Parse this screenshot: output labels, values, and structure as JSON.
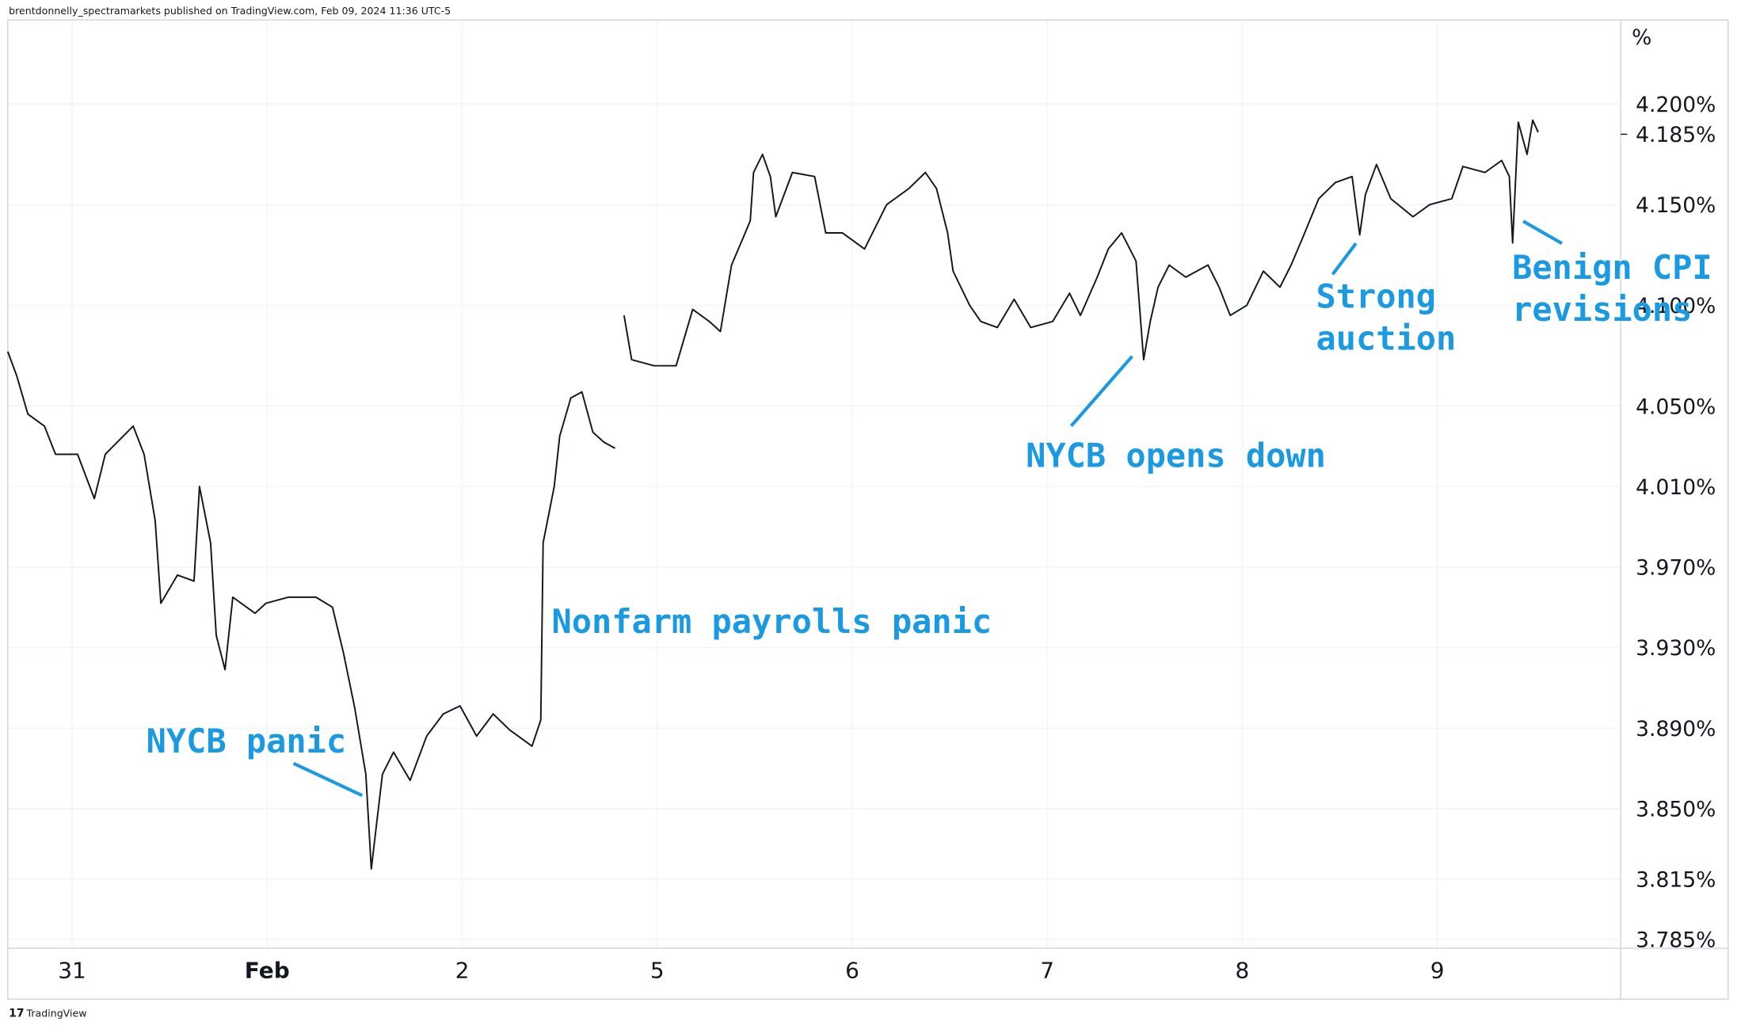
{
  "header": {
    "text": "brentdonnelly_spectramarkets published on TradingView.com, Feb 09, 2024 11:36 UTC-5"
  },
  "footer": {
    "text": "TradingView"
  },
  "chart_data": {
    "type": "line",
    "axis_unit": "%",
    "x": [
      -0.33,
      -0.284,
      -0.227,
      -0.142,
      -0.085,
      0.028,
      0.114,
      0.17,
      0.313,
      0.369,
      0.426,
      0.455,
      0.54,
      0.625,
      0.653,
      0.71,
      0.739,
      0.784,
      0.824,
      0.938,
      0.994,
      1.108,
      1.25,
      1.335,
      1.392,
      1.449,
      1.506,
      1.534,
      1.591,
      1.648,
      1.733,
      1.818,
      1.903,
      1.989,
      2.074,
      2.159,
      2.244,
      2.358,
      2.403,
      2.415,
      2.472,
      2.5,
      2.557,
      2.614,
      2.67,
      2.727,
      2.784,
      2.807,
      2.83,
      2.869,
      2.983,
      3.097,
      3.182,
      3.267,
      3.324,
      3.381,
      3.438,
      3.477,
      3.494,
      3.54,
      3.58,
      3.608,
      3.693,
      3.807,
      3.864,
      3.949,
      4.063,
      4.176,
      4.29,
      4.375,
      4.432,
      4.489,
      4.517,
      4.602,
      4.659,
      4.744,
      4.83,
      4.915,
      5.028,
      5.114,
      5.17,
      5.256,
      5.313,
      5.381,
      5.455,
      5.494,
      5.528,
      5.568,
      5.625,
      5.71,
      5.824,
      5.881,
      5.938,
      6.023,
      6.108,
      6.193,
      6.25,
      6.307,
      6.392,
      6.477,
      6.563,
      6.602,
      6.631,
      6.688,
      6.761,
      6.875,
      6.96,
      7.074,
      7.131,
      7.244,
      7.33,
      7.369,
      7.386,
      7.415,
      7.46,
      7.489,
      7.517
    ],
    "series": [
      {
        "color": "#131722",
        "values": [
          4.077,
          4.065,
          4.046,
          4.04,
          4.026,
          4.026,
          4.004,
          4.026,
          4.04,
          4.026,
          3.993,
          3.952,
          3.966,
          3.963,
          4.01,
          3.982,
          3.936,
          3.919,
          3.955,
          3.947,
          3.952,
          3.955,
          3.955,
          3.95,
          3.927,
          3.9,
          3.867,
          3.82,
          3.867,
          3.878,
          3.864,
          3.886,
          3.897,
          3.901,
          3.886,
          3.897,
          3.889,
          3.881,
          3.894,
          3.982,
          4.01,
          4.035,
          4.054,
          4.057,
          4.037,
          4.032,
          4.029,
          null,
          4.095,
          4.073,
          4.07,
          4.07,
          4.098,
          4.092,
          4.087,
          4.12,
          4.133,
          4.142,
          4.166,
          4.175,
          4.164,
          4.144,
          4.166,
          4.164,
          4.136,
          4.136,
          4.128,
          4.15,
          4.158,
          4.166,
          4.158,
          4.136,
          4.117,
          4.1,
          4.092,
          4.089,
          4.103,
          4.089,
          4.092,
          4.106,
          4.095,
          4.114,
          4.128,
          4.136,
          4.122,
          4.073,
          4.092,
          4.109,
          4.12,
          4.114,
          4.12,
          4.109,
          4.095,
          4.1,
          4.117,
          4.109,
          4.12,
          4.133,
          4.153,
          4.161,
          4.164,
          4.135,
          4.155,
          4.17,
          4.153,
          4.144,
          4.15,
          4.153,
          4.169,
          4.166,
          4.172,
          4.164,
          4.131,
          4.191,
          4.175,
          4.192,
          4.186
        ]
      }
    ],
    "xlim": [
      -0.33,
      7.94
    ],
    "xticks": [
      {
        "value": 0,
        "label": "31"
      },
      {
        "value": 1,
        "label": "Feb"
      },
      {
        "value": 2,
        "label": "2"
      },
      {
        "value": 3,
        "label": "5"
      },
      {
        "value": 4,
        "label": "6"
      },
      {
        "value": 5,
        "label": "7"
      },
      {
        "value": 6,
        "label": "8"
      },
      {
        "value": 7,
        "label": "9"
      }
    ],
    "ylim": [
      3.7806,
      4.2418
    ],
    "yticks": [
      {
        "value": 4.2,
        "label": "4.200%"
      },
      {
        "value": 4.15,
        "label": "4.150%"
      },
      {
        "value": 4.1,
        "label": "4.100%"
      },
      {
        "value": 4.05,
        "label": "4.050%"
      },
      {
        "value": 4.01,
        "label": "4.010%"
      },
      {
        "value": 3.97,
        "label": "3.970%"
      },
      {
        "value": 3.93,
        "label": "3.930%"
      },
      {
        "value": 3.89,
        "label": "3.890%"
      },
      {
        "value": 3.85,
        "label": "3.850%"
      },
      {
        "value": 3.815,
        "label": "3.815%"
      },
      {
        "value": 3.785,
        "label": "3.785%"
      }
    ],
    "last_price": {
      "value": 4.185,
      "label": "4.185%"
    },
    "grid": true,
    "annotations": [
      {
        "lines": [
          "NYCB panic"
        ]
      },
      {
        "lines": [
          "Nonfarm payrolls panic"
        ]
      },
      {
        "lines": [
          "NYCB opens down"
        ]
      },
      {
        "lines": [
          "Strong",
          "auction"
        ]
      },
      {
        "lines": [
          "Benign CPI",
          "revisions"
        ]
      }
    ]
  }
}
